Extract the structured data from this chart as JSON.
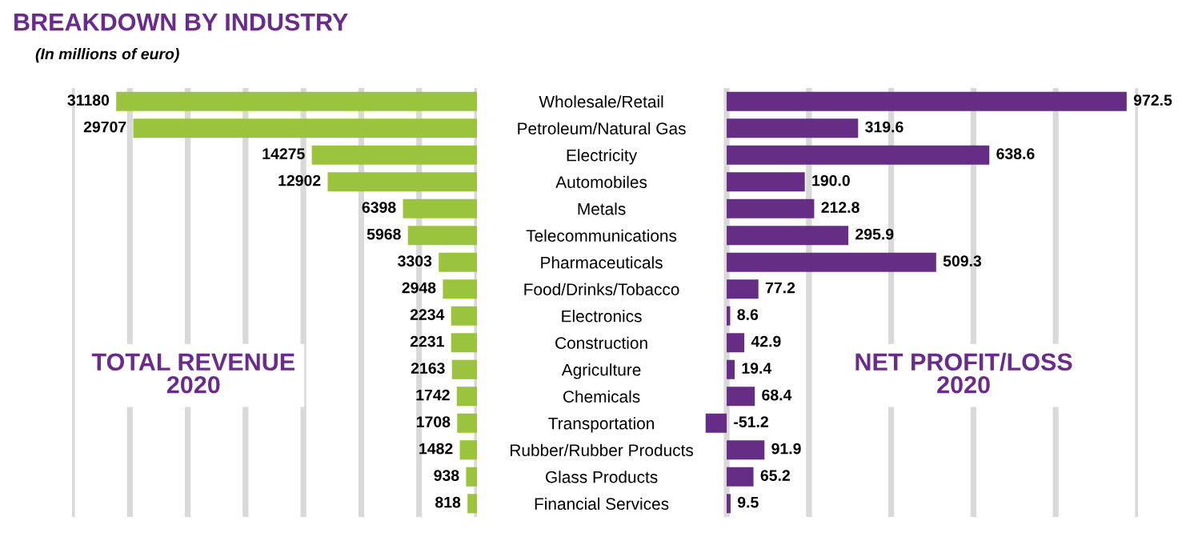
{
  "chart_data": [
    {
      "type": "bar",
      "orientation": "horizontal",
      "title": "BREAKDOWN BY INDUSTRY",
      "subtitle": "(In millions of euro)",
      "categories": [
        "Wholesale/Retail",
        "Petroleum/Natural Gas",
        "Electricity",
        "Automobiles",
        "Metals",
        "Telecommunications",
        "Pharmaceuticals",
        "Food/Drinks/Tobacco",
        "Electronics",
        "Construction",
        "Agriculture",
        "Chemicals",
        "Transportation",
        "Rubber/Rubber Products",
        "Glass Products",
        "Financial Services"
      ],
      "values": [
        31180,
        29707,
        14275,
        12902,
        6398,
        5968,
        3303,
        2948,
        2234,
        2231,
        2163,
        1742,
        1708,
        1482,
        938,
        818
      ],
      "color": "#9bc33d",
      "data_labels": true,
      "xlim": [
        35000,
        0
      ],
      "xticks": [
        {
          "value": 0,
          "label": null
        },
        {
          "value": 5000,
          "label": null
        },
        {
          "value": 10000,
          "label": null
        },
        {
          "value": 15000,
          "label": null
        },
        {
          "value": 20000,
          "label": null
        },
        {
          "value": 25000,
          "label": null
        },
        {
          "value": 30000,
          "label": null
        },
        {
          "value": 35000,
          "label": null
        }
      ],
      "grid": "x",
      "tick_labels": "y",
      "annotations": [
        "TOTAL REVENUE\n2020"
      ]
    },
    {
      "type": "bar",
      "orientation": "horizontal",
      "categories": [
        null,
        null,
        null,
        null,
        null,
        null,
        null,
        null,
        null,
        null,
        null,
        null,
        null,
        null,
        null,
        null
      ],
      "values": [
        972.5,
        319.6,
        638.6,
        190.0,
        212.8,
        295.9,
        509.3,
        77.2,
        8.6,
        42.9,
        19.4,
        68.4,
        -51.2,
        91.9,
        65.2,
        9.5
      ],
      "value_labels": [
        "972.5",
        "319.6",
        "638.6",
        "190.0",
        "212.8",
        "295.9",
        "509.3",
        "77.2",
        "8.6",
        "42.9",
        "19.4",
        "68.4",
        "-51.2",
        "91.9",
        "65.2",
        "9.5"
      ],
      "color": "#652d86",
      "xlim": [
        -60,
        1000
      ],
      "xticks": [
        {
          "value": 0,
          "label": null
        },
        {
          "value": 200,
          "label": null
        },
        {
          "value": 400,
          "label": null
        },
        {
          "value": 600,
          "label": null
        },
        {
          "value": 800,
          "label": null
        },
        {
          "value": 1000,
          "label": null
        }
      ],
      "grid": "x",
      "tick_labels": false,
      "annotations": [
        "NET PROFIT/LOSS\n2020"
      ]
    }
  ]
}
